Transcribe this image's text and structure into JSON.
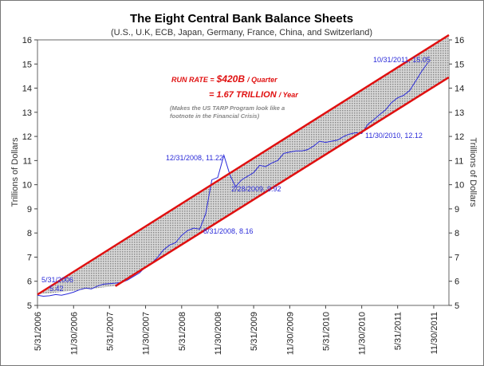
{
  "chart_data": {
    "type": "line",
    "title": "The Eight Central Bank Balance Sheets",
    "subtitle": "(U.S., U.K, ECB, Japan, Germany, France, China, and Switzerland)",
    "ylabel": "Trillions of Dollars",
    "y2label": "Trillions of Dollars",
    "x": [
      "5/31/2006",
      "6/30/2006",
      "7/31/2006",
      "8/31/2006",
      "9/30/2006",
      "10/31/2006",
      "11/30/2006",
      "12/31/2006",
      "1/31/2007",
      "2/28/2007",
      "3/31/2007",
      "4/30/2007",
      "5/31/2007",
      "6/30/2007",
      "7/31/2007",
      "8/31/2007",
      "9/30/2007",
      "10/31/2007",
      "11/30/2007",
      "12/31/2007",
      "1/31/2008",
      "2/29/2008",
      "3/31/2008",
      "4/30/2008",
      "5/31/2008",
      "6/30/2008",
      "7/31/2008",
      "8/31/2008",
      "9/30/2008",
      "10/31/2008",
      "11/30/2008",
      "12/31/2008",
      "1/31/2009",
      "2/28/2009",
      "3/31/2009",
      "4/30/2009",
      "5/31/2009",
      "6/30/2009",
      "7/31/2009",
      "8/31/2009",
      "9/30/2009",
      "10/31/2009",
      "11/30/2009",
      "12/31/2009",
      "1/31/2010",
      "2/28/2010",
      "3/31/2010",
      "4/30/2010",
      "5/31/2010",
      "6/30/2010",
      "7/31/2010",
      "8/31/2010",
      "9/30/2010",
      "10/31/2010",
      "11/30/2010",
      "12/31/2010",
      "1/31/2011",
      "2/28/2011",
      "3/31/2011",
      "4/30/2011",
      "5/31/2011",
      "6/30/2011",
      "7/31/2011",
      "8/31/2011",
      "9/30/2011",
      "10/31/2011"
    ],
    "series": [
      {
        "color": "#2b2bd9",
        "values": [
          5.42,
          5.38,
          5.4,
          5.45,
          5.42,
          5.48,
          5.55,
          5.65,
          5.72,
          5.68,
          5.8,
          5.88,
          5.9,
          5.92,
          5.95,
          6.05,
          6.2,
          6.35,
          6.6,
          6.75,
          7.0,
          7.3,
          7.5,
          7.6,
          7.9,
          8.1,
          8.2,
          8.16,
          8.8,
          10.2,
          10.3,
          11.22,
          10.4,
          9.92,
          10.2,
          10.35,
          10.5,
          10.8,
          10.75,
          10.9,
          11.0,
          11.3,
          11.35,
          11.4,
          11.4,
          11.45,
          11.6,
          11.8,
          11.75,
          11.8,
          11.85,
          12.0,
          12.1,
          12.15,
          12.12,
          12.5,
          12.7,
          12.9,
          13.1,
          13.4,
          13.6,
          13.7,
          13.9,
          14.3,
          14.7,
          15.05
        ]
      }
    ],
    "trend_lines": [
      {
        "color": "#e01010",
        "x": [
          "5/31/2006",
          "2/15/2012"
        ],
        "values": [
          5.45,
          16.2
        ]
      },
      {
        "color": "#e01010",
        "x": [
          "6/30/2007",
          "2/15/2012"
        ],
        "values": [
          5.8,
          14.45
        ]
      }
    ],
    "xlim": [
      "5/31/2006",
      "2/15/2012"
    ],
    "xticks": [
      "5/31/2006",
      "11/30/2006",
      "5/31/2007",
      "11/30/2007",
      "5/31/2008",
      "11/30/2008",
      "5/31/2009",
      "11/30/2009",
      "5/31/2010",
      "11/30/2010",
      "5/31/2011",
      "11/30/2011"
    ],
    "ylim": [
      5,
      16
    ],
    "yticks": [
      5,
      6,
      7,
      8,
      9,
      10,
      11,
      12,
      13,
      14,
      15,
      16
    ],
    "y2lim": [
      5,
      16
    ],
    "y2ticks": [
      5,
      6,
      7,
      8,
      9,
      10,
      11,
      12,
      13,
      14,
      15,
      16
    ],
    "annotations": [
      "5/31/2006",
      "5.42",
      "12/31/2008, 11.22",
      "2/28/2009, 9.92",
      "8/31/2008, 8.16",
      "11/30/2010, 12.12",
      "10/31/2011, 15.05"
    ],
    "run_rate": [
      "RUN RATE  =",
      "$420B",
      "/ Quarter",
      "= 1.67 TRILLION",
      "/ Year",
      "(Makes the US TARP Program look like a",
      "footnote in the Financial Crisis)"
    ]
  }
}
